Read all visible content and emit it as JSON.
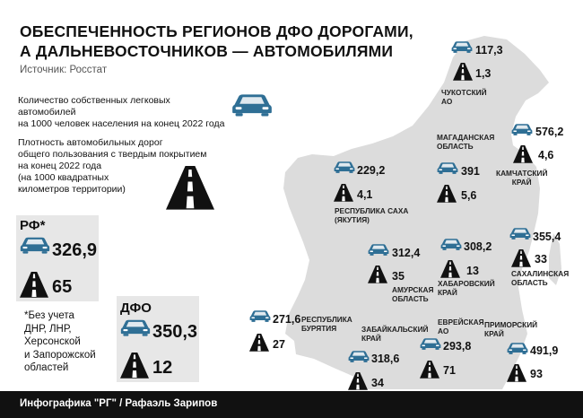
{
  "header": {
    "title_line1": "ОБЕСПЕЧЕННОСТЬ РЕГИОНОВ ДФО ДОРОГАМИ,",
    "title_line2": "А ДАЛЬНЕВОСТОЧНИКОВ — АВТОМОБИЛЯМИ",
    "source": "Источник: Росстат"
  },
  "legend": {
    "cars_line1": "Количество собственных легковых автомобилей",
    "cars_line2": "на 1000 человек населения на конец 2022 года",
    "roads_line1": "Плотность автомобильных дорог",
    "roads_line2": "общего пользования с твердым покрытием",
    "roads_line3": "на конец 2022 года",
    "roads_line4": "(на 1000 квадратных",
    "roads_line5": "километров территории)"
  },
  "russia": {
    "label": "РФ*",
    "cars": "326,9",
    "roads": "65",
    "note_line1": "*Без учета",
    "note_line2": "ДНР, ЛНР,",
    "note_line3": "Херсонской",
    "note_line4": "и Запорожской",
    "note_line5": "областей"
  },
  "dfo": {
    "label": "ДФО",
    "cars": "350,3",
    "roads": "12"
  },
  "regions": {
    "chukotka": {
      "name1": "ЧУКОТСКИЙ",
      "name2": "АО",
      "cars": "117,3",
      "roads": "1,3"
    },
    "magadan": {
      "name1": "МАГАДАНСКАЯ",
      "name2": "ОБЛАСТЬ",
      "cars": "391",
      "roads": "5,6"
    },
    "kamchatka": {
      "name1": "КАМЧАТСКИЙ",
      "name2": "КРАЙ",
      "cars": "576,2",
      "roads": "4,6"
    },
    "yakutia": {
      "name1": "РЕСПУБЛИКА САХА",
      "name2": "(ЯКУТИЯ)",
      "cars": "229,2",
      "roads": "4,1"
    },
    "amur": {
      "name1": "АМУРСКАЯ",
      "name2": "ОБЛАСТЬ",
      "cars": "312,4",
      "roads": "35"
    },
    "khabarovsk": {
      "name1": "ХАБАРОВСКИЙ",
      "name2": "КРАЙ",
      "cars": "308,2",
      "roads": "13"
    },
    "sakhalin": {
      "name1": "САХАЛИНСКАЯ",
      "name2": "ОБЛАСТЬ",
      "cars": "355,4",
      "roads": "33"
    },
    "buryatia": {
      "name1": "РЕСПУБЛИКА",
      "name2": "БУРЯТИЯ",
      "cars": "271,6",
      "roads": "27"
    },
    "zabaikalsky": {
      "name1": "ЗАБАЙКАЛЬСКИЙ",
      "name2": "КРАЙ",
      "cars": "318,6",
      "roads": "34"
    },
    "jewish": {
      "name1": "ЕВРЕЙСКАЯ",
      "name2": "АО",
      "cars": "293,8",
      "roads": "71"
    },
    "primorsky": {
      "name1": "ПРИМОРСКИЙ",
      "name2": "КРАЙ",
      "cars": "491,9",
      "roads": "93"
    }
  },
  "footer": {
    "credit": "Инфографика \"РГ\" / Рафаэль Зарипов"
  },
  "colors": {
    "car_icon": "#2f6f95",
    "map": "#dcdcdc",
    "box": "#e7e7e7",
    "footer": "#111111"
  },
  "icons": {
    "car": "car-icon",
    "road": "road-icon"
  }
}
